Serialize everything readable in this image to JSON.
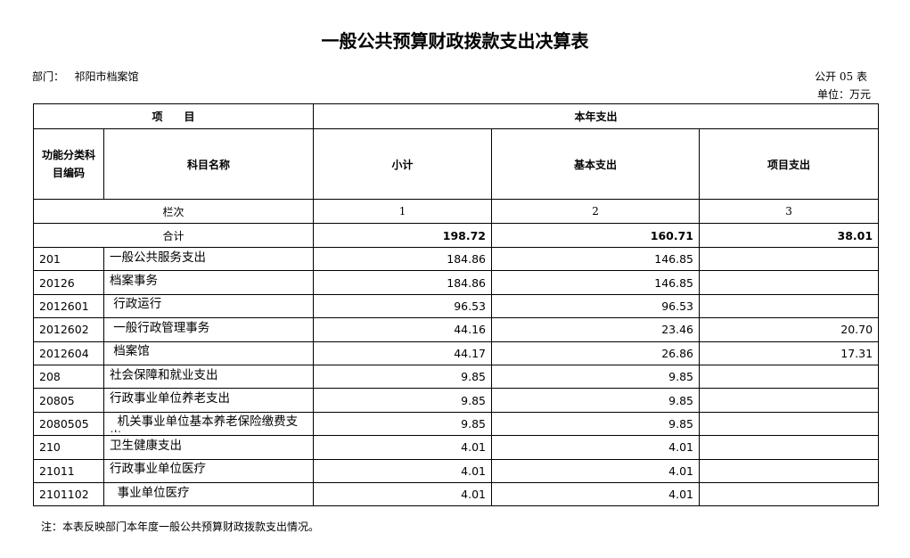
{
  "title": "一般公共预算财政拨款支出决算表",
  "department_label": "部门：",
  "department": "祁阳市档案馆",
  "form_no": "公开 05 表",
  "unit": "单位：万元",
  "header": {
    "item": "项　　目",
    "this_year": "本年支出",
    "code": "功能分类科目编码",
    "name": "科目名称",
    "subtotal": "小计",
    "basic": "基本支出",
    "project": "项目支出",
    "col_index_label": "栏次",
    "col1": "1",
    "col2": "2",
    "col3": "3",
    "total_label": "合计",
    "total_subtotal": "198.72",
    "total_basic": "160.71",
    "total_project": "38.01"
  },
  "rows": [
    {
      "code": "201",
      "name": "一般公共服务支出",
      "subtotal": "184.86",
      "basic": "146.85",
      "project": ""
    },
    {
      "code": "20126",
      "name": "档案事务",
      "subtotal": "184.86",
      "basic": "146.85",
      "project": ""
    },
    {
      "code": "2012601",
      "name": " 行政运行",
      "subtotal": "96.53",
      "basic": "96.53",
      "project": ""
    },
    {
      "code": "2012602",
      "name": " 一般行政管理事务",
      "subtotal": "44.16",
      "basic": "23.46",
      "project": "20.70"
    },
    {
      "code": "2012604",
      "name": " 档案馆",
      "subtotal": "44.17",
      "basic": "26.86",
      "project": "17.31"
    },
    {
      "code": "208",
      "name": "社会保障和就业支出",
      "subtotal": "9.85",
      "basic": "9.85",
      "project": ""
    },
    {
      "code": "20805",
      "name": "行政事业单位养老支出",
      "subtotal": "9.85",
      "basic": "9.85",
      "project": ""
    },
    {
      "code": "2080505",
      "name": "  机关事业单位基本养老保险缴费支出",
      "subtotal": "9.85",
      "basic": "9.85",
      "project": ""
    },
    {
      "code": "210",
      "name": "卫生健康支出",
      "subtotal": "4.01",
      "basic": "4.01",
      "project": ""
    },
    {
      "code": "21011",
      "name": "行政事业单位医疗",
      "subtotal": "4.01",
      "basic": "4.01",
      "project": ""
    },
    {
      "code": "2101102",
      "name": "  事业单位医疗",
      "subtotal": "4.01",
      "basic": "4.01",
      "project": ""
    }
  ],
  "note": "注：本表反映部门本年度一般公共预算财政拨款支出情况。"
}
